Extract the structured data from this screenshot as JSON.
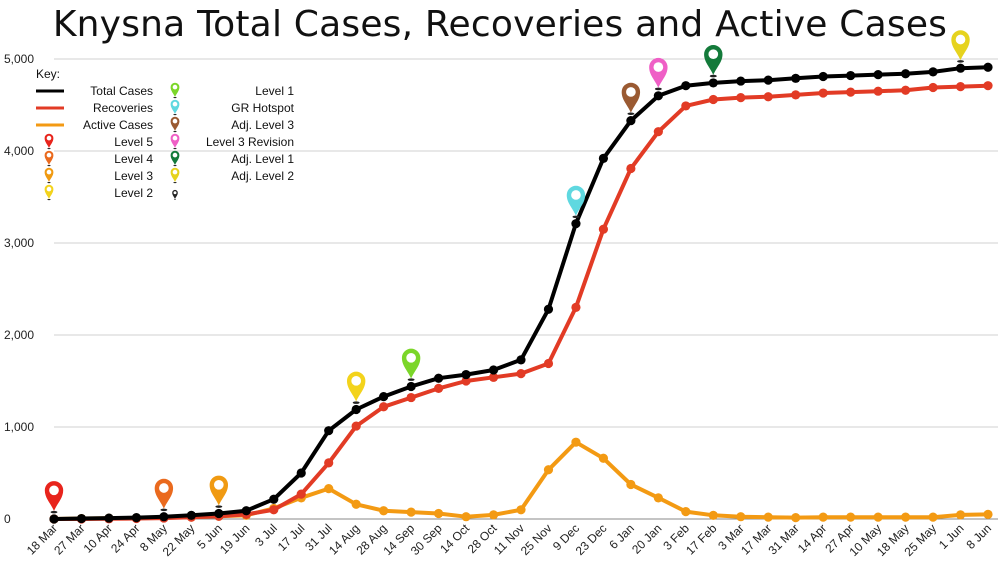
{
  "chart_data": {
    "type": "line",
    "title": "Knysna Total Cases, Recoveries and Active Cases",
    "xlabel": "",
    "ylabel": "",
    "ylim": [
      0,
      5000
    ],
    "yticks": [
      0,
      1000,
      2000,
      3000,
      4000,
      5000
    ],
    "ytick_labels": [
      "0",
      "1,000",
      "2,000",
      "3,000",
      "4,000",
      "5,000"
    ],
    "grid": "horizontal",
    "categories": [
      "18 Mar",
      "27 Mar",
      "10 Apr",
      "24 Apr",
      "8 May",
      "22 May",
      "5 Jun",
      "19 Jun",
      "3 Jul",
      "17 Jul",
      "31 Jul",
      "14 Aug",
      "28 Aug",
      "14 Sep",
      "30 Sep",
      "14 Oct",
      "28 Oct",
      "11 Nov",
      "25 Nov",
      "9 Dec",
      "23 Dec",
      "6 Jan",
      "20 Jan",
      "3 Feb",
      "17 Feb",
      "3 Mar",
      "17 Mar",
      "31 Mar",
      "14 Apr",
      "27 Apr",
      "10 May",
      "18 May",
      "25 May",
      "1 Jun",
      "8 Jun"
    ],
    "series": [
      {
        "name": "Total Cases",
        "color": "#000000",
        "values": [
          0,
          5,
          10,
          15,
          25,
          40,
          60,
          90,
          215,
          500,
          960,
          1190,
          1330,
          1440,
          1530,
          1570,
          1620,
          1730,
          2280,
          3210,
          3920,
          4330,
          4600,
          4710,
          4740,
          4760,
          4770,
          4790,
          4810,
          4820,
          4830,
          4840,
          4860,
          4900,
          4910
        ]
      },
      {
        "name": "Recoveries",
        "color": "#e23b25",
        "values": [
          0,
          0,
          2,
          5,
          10,
          20,
          30,
          50,
          100,
          270,
          610,
          1010,
          1220,
          1320,
          1420,
          1500,
          1540,
          1580,
          1690,
          2300,
          3150,
          3810,
          4210,
          4490,
          4560,
          4580,
          4590,
          4610,
          4630,
          4640,
          4650,
          4660,
          4690,
          4700,
          4710
        ]
      },
      {
        "name": "Active Cases",
        "color": "#f39a13",
        "values": [
          0,
          5,
          8,
          10,
          15,
          20,
          30,
          40,
          115,
          230,
          330,
          160,
          90,
          75,
          60,
          25,
          45,
          100,
          535,
          835,
          660,
          375,
          230,
          80,
          40,
          25,
          20,
          15,
          20,
          20,
          20,
          20,
          20,
          45,
          50
        ]
      }
    ],
    "legend_title": "Key:",
    "legend_position": "top-left",
    "markers": [
      {
        "name": "Level 5",
        "color": "#e8241c",
        "category": "18 Mar"
      },
      {
        "name": "Level 4",
        "color": "#ea6a1e",
        "category": "8 May"
      },
      {
        "name": "Level 3",
        "color": "#f09a12",
        "category": "5 Jun"
      },
      {
        "name": "Level 2",
        "color": "#f3d31c",
        "category": "14 Aug"
      },
      {
        "name": "Level 1",
        "color": "#7bd629",
        "category": "14 Sep"
      },
      {
        "name": "GR Hotspot",
        "color": "#5fd8e0",
        "category": "9 Dec"
      },
      {
        "name": "Adj. Level 3",
        "color": "#9a5a32",
        "category": "6 Jan"
      },
      {
        "name": "Level 3 Revision",
        "color": "#ef5fc6",
        "category": "20 Jan"
      },
      {
        "name": "Adj. Level 1",
        "color": "#137a3a",
        "category": "17 Feb"
      },
      {
        "name": "Adj. Level 2",
        "color": "#e6d31e",
        "category": "1 Jun"
      }
    ]
  }
}
